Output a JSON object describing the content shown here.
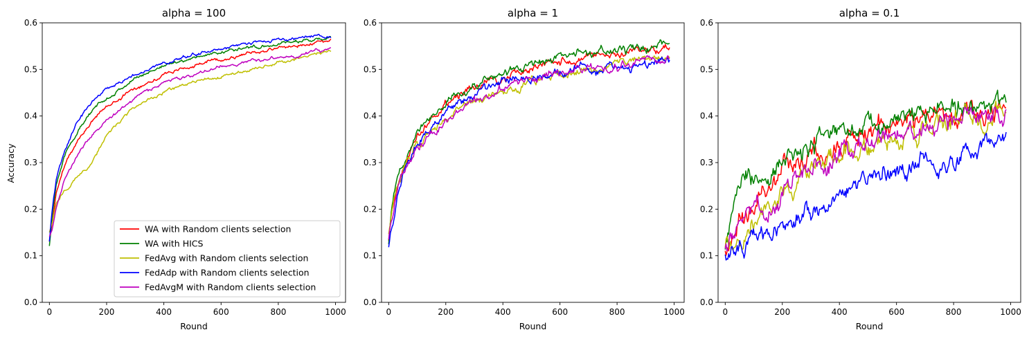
{
  "chart_data": [
    {
      "type": "line",
      "title": "alpha = 100",
      "xlabel": "Round",
      "ylabel": "Accuracy",
      "xlim": [
        -25,
        1035
      ],
      "ylim": [
        0,
        0.6
      ],
      "xticks": [
        0,
        200,
        400,
        600,
        800,
        1000
      ],
      "yticks": [
        0.0,
        0.1,
        0.2,
        0.3,
        0.4,
        0.5,
        0.6
      ],
      "grid": false,
      "legend": "lower-right",
      "noise": 0.002,
      "series": [
        {
          "name": "WA with Random clients selection",
          "color": "#ff0000",
          "x": [
            0,
            10,
            25,
            50,
            100,
            150,
            200,
            300,
            400,
            500,
            600,
            700,
            800,
            900,
            985
          ],
          "y": [
            0.13,
            0.17,
            0.24,
            0.29,
            0.35,
            0.39,
            0.42,
            0.46,
            0.49,
            0.508,
            0.522,
            0.535,
            0.545,
            0.555,
            0.565
          ]
        },
        {
          "name": "WA with HICS",
          "color": "#008000",
          "x": [
            0,
            10,
            25,
            50,
            100,
            150,
            200,
            300,
            400,
            500,
            600,
            700,
            800,
            900,
            985
          ],
          "y": [
            0.12,
            0.19,
            0.26,
            0.31,
            0.37,
            0.41,
            0.44,
            0.48,
            0.51,
            0.525,
            0.537,
            0.548,
            0.556,
            0.562,
            0.567
          ]
        },
        {
          "name": "FedAvg with Random clients selection",
          "color": "#bfbf00",
          "x": [
            0,
            10,
            25,
            50,
            100,
            150,
            200,
            300,
            400,
            500,
            600,
            700,
            800,
            900,
            985
          ],
          "y": [
            0.15,
            0.17,
            0.21,
            0.24,
            0.27,
            0.3,
            0.36,
            0.42,
            0.45,
            0.47,
            0.485,
            0.5,
            0.515,
            0.53,
            0.54
          ]
        },
        {
          "name": "FedAdp with Random clients selection",
          "color": "#0000ff",
          "x": [
            0,
            10,
            25,
            50,
            100,
            150,
            200,
            300,
            400,
            500,
            600,
            700,
            800,
            900,
            985
          ],
          "y": [
            0.13,
            0.2,
            0.27,
            0.32,
            0.39,
            0.43,
            0.46,
            0.49,
            0.515,
            0.53,
            0.545,
            0.555,
            0.563,
            0.57,
            0.573
          ]
        },
        {
          "name": "FedAvgM with Random clients selection",
          "color": "#bf00bf",
          "x": [
            0,
            10,
            25,
            50,
            100,
            150,
            200,
            300,
            400,
            500,
            600,
            700,
            800,
            900,
            985
          ],
          "y": [
            0.14,
            0.16,
            0.21,
            0.26,
            0.32,
            0.36,
            0.39,
            0.44,
            0.47,
            0.49,
            0.505,
            0.515,
            0.525,
            0.535,
            0.545
          ]
        }
      ]
    },
    {
      "type": "line",
      "title": "alpha = 1",
      "xlabel": "Round",
      "ylabel": "",
      "xlim": [
        -25,
        1035
      ],
      "ylim": [
        0,
        0.6
      ],
      "xticks": [
        0,
        200,
        400,
        600,
        800,
        1000
      ],
      "yticks": [
        0.0,
        0.1,
        0.2,
        0.3,
        0.4,
        0.5,
        0.6
      ],
      "grid": false,
      "legend": "none",
      "noise": 0.005,
      "series": [
        {
          "name": "WA with Random clients selection",
          "color": "#ff0000",
          "x": [
            0,
            10,
            25,
            50,
            100,
            200,
            300,
            400,
            500,
            600,
            700,
            800,
            900,
            985
          ],
          "y": [
            0.14,
            0.19,
            0.24,
            0.29,
            0.36,
            0.43,
            0.46,
            0.48,
            0.5,
            0.515,
            0.525,
            0.53,
            0.54,
            0.55
          ]
        },
        {
          "name": "WA with HICS",
          "color": "#008000",
          "x": [
            0,
            10,
            25,
            50,
            100,
            200,
            300,
            400,
            500,
            600,
            700,
            800,
            900,
            985
          ],
          "y": [
            0.13,
            0.2,
            0.25,
            0.3,
            0.38,
            0.43,
            0.47,
            0.49,
            0.51,
            0.525,
            0.535,
            0.54,
            0.548,
            0.555
          ]
        },
        {
          "name": "FedAvg with Random clients selection",
          "color": "#bfbf00",
          "x": [
            0,
            10,
            25,
            50,
            100,
            200,
            300,
            400,
            500,
            600,
            700,
            800,
            900,
            985
          ],
          "y": [
            0.15,
            0.2,
            0.25,
            0.28,
            0.34,
            0.39,
            0.43,
            0.455,
            0.47,
            0.49,
            0.5,
            0.51,
            0.515,
            0.525
          ]
        },
        {
          "name": "FedAdp with Random clients selection",
          "color": "#0000ff",
          "x": [
            0,
            10,
            20,
            35,
            50,
            100,
            200,
            300,
            400,
            500,
            600,
            700,
            800,
            900,
            985
          ],
          "y": [
            0.125,
            0.16,
            0.18,
            0.24,
            0.28,
            0.34,
            0.41,
            0.44,
            0.47,
            0.485,
            0.495,
            0.5,
            0.505,
            0.51,
            0.515
          ]
        },
        {
          "name": "FedAvgM with Random clients selection",
          "color": "#bf00bf",
          "x": [
            0,
            10,
            25,
            50,
            100,
            200,
            300,
            400,
            500,
            600,
            700,
            800,
            900,
            985
          ],
          "y": [
            0.14,
            0.18,
            0.23,
            0.28,
            0.34,
            0.39,
            0.43,
            0.46,
            0.48,
            0.495,
            0.5,
            0.505,
            0.51,
            0.52
          ]
        }
      ]
    },
    {
      "type": "line",
      "title": "alpha = 0.1",
      "xlabel": "Round",
      "ylabel": "",
      "xlim": [
        -25,
        1035
      ],
      "ylim": [
        0,
        0.6
      ],
      "xticks": [
        0,
        200,
        400,
        600,
        800,
        1000
      ],
      "yticks": [
        0.0,
        0.1,
        0.2,
        0.3,
        0.4,
        0.5,
        0.6
      ],
      "grid": false,
      "legend": "none",
      "noise": 0.012,
      "series": [
        {
          "name": "WA with Random clients selection",
          "color": "#ff0000",
          "x": [
            0,
            25,
            50,
            100,
            150,
            200,
            300,
            400,
            500,
            600,
            700,
            800,
            900,
            985
          ],
          "y": [
            0.11,
            0.14,
            0.16,
            0.2,
            0.24,
            0.28,
            0.32,
            0.34,
            0.37,
            0.38,
            0.395,
            0.405,
            0.415,
            0.425
          ]
        },
        {
          "name": "WA with HICS",
          "color": "#008000",
          "x": [
            0,
            10,
            25,
            50,
            100,
            150,
            200,
            300,
            400,
            500,
            600,
            700,
            800,
            900,
            985
          ],
          "y": [
            0.12,
            0.16,
            0.2,
            0.23,
            0.26,
            0.29,
            0.31,
            0.33,
            0.35,
            0.38,
            0.39,
            0.4,
            0.41,
            0.425,
            0.43
          ]
        },
        {
          "name": "FedAvg with Random clients selection",
          "color": "#bfbf00",
          "x": [
            0,
            25,
            50,
            100,
            150,
            200,
            300,
            400,
            500,
            600,
            700,
            800,
            900,
            985
          ],
          "y": [
            0.12,
            0.13,
            0.14,
            0.17,
            0.21,
            0.24,
            0.29,
            0.32,
            0.34,
            0.36,
            0.38,
            0.4,
            0.41,
            0.42
          ]
        },
        {
          "name": "FedAdp with Random clients selection",
          "color": "#0000ff",
          "x": [
            0,
            25,
            50,
            100,
            150,
            200,
            300,
            400,
            500,
            600,
            700,
            800,
            900,
            985
          ],
          "y": [
            0.1,
            0.11,
            0.115,
            0.125,
            0.14,
            0.16,
            0.2,
            0.235,
            0.265,
            0.285,
            0.3,
            0.31,
            0.32,
            0.33
          ]
        },
        {
          "name": "FedAvgM with Random clients selection",
          "color": "#bf00bf",
          "x": [
            0,
            25,
            50,
            100,
            150,
            200,
            300,
            400,
            500,
            600,
            700,
            800,
            900,
            985
          ],
          "y": [
            0.12,
            0.14,
            0.15,
            0.19,
            0.21,
            0.24,
            0.28,
            0.31,
            0.34,
            0.36,
            0.37,
            0.385,
            0.395,
            0.4
          ]
        }
      ]
    }
  ]
}
